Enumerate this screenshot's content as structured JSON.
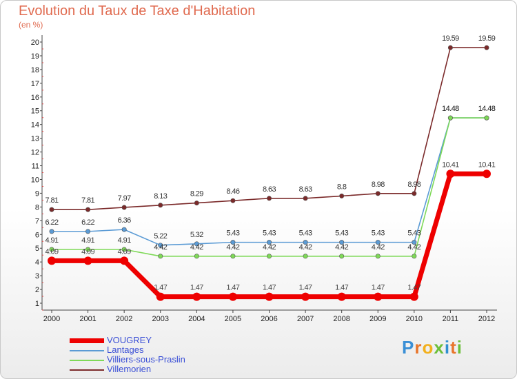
{
  "chart_data": {
    "type": "line",
    "title": "Evolution du Taux de Taxe d'Habitation",
    "subtitle": "(en %)",
    "x": [
      "2000",
      "2001",
      "2002",
      "2003",
      "2004",
      "2005",
      "2006",
      "2007",
      "2008",
      "2009",
      "2010",
      "2011",
      "2012"
    ],
    "ylim": [
      1,
      20
    ],
    "yticks": [
      1,
      2,
      3,
      4,
      5,
      6,
      7,
      8,
      9,
      10,
      11,
      12,
      13,
      14,
      15,
      16,
      17,
      18,
      19,
      20
    ],
    "grid": false,
    "legend_position": "bottom-left",
    "series": [
      {
        "name": "VOUGREY",
        "color": "#ee0000",
        "values": [
          4.09,
          4.09,
          4.09,
          1.47,
          1.47,
          1.47,
          1.47,
          1.47,
          1.47,
          1.47,
          1.47,
          10.41,
          10.41
        ],
        "labels": [
          "4.09",
          "4.09",
          "4.09",
          "1.47",
          "1.47",
          "1.47",
          "1.47",
          "1.47",
          "1.47",
          "1.47",
          "1.47",
          "10.41",
          "10.41"
        ]
      },
      {
        "name": "Lantages",
        "color": "#5b9bd5",
        "values": [
          6.22,
          6.22,
          6.36,
          5.22,
          5.32,
          5.43,
          5.43,
          5.43,
          5.43,
          5.43,
          5.43,
          14.48,
          14.48
        ],
        "labels": [
          "6.22",
          "6.22",
          "6.36",
          "5.22",
          "5.32",
          "5.43",
          "5.43",
          "5.43",
          "5.43",
          "5.43",
          "5.43",
          "14.48",
          "14.48"
        ]
      },
      {
        "name": "Villiers-sous-Praslin",
        "color": "#7ed957",
        "values": [
          4.91,
          4.91,
          4.91,
          4.42,
          4.42,
          4.42,
          4.42,
          4.42,
          4.42,
          4.42,
          4.42,
          14.48,
          14.48
        ],
        "labels": [
          "4.91",
          "4.91",
          "4.91",
          "4.42",
          "4.42",
          "4.42",
          "4.42",
          "4.42",
          "4.42",
          "4.42",
          "4.42",
          "14.48",
          "14.48"
        ]
      },
      {
        "name": "Villemorien",
        "color": "#7b2a2a",
        "values": [
          7.81,
          7.81,
          7.97,
          8.13,
          8.29,
          8.46,
          8.63,
          8.63,
          8.8,
          8.98,
          8.98,
          19.59,
          19.59
        ],
        "labels": [
          "7.81",
          "7.81",
          "7.97",
          "8.13",
          "8.29",
          "8.46",
          "8.63",
          "8.63",
          "8.8",
          "8.98",
          "8.98",
          "19.59",
          "19.59"
        ]
      }
    ]
  },
  "brand": {
    "text": "Proxiti",
    "letter_colors": [
      "#3a8fd6",
      "#e8762c",
      "#f2b01e",
      "#6cbf3a",
      "#2f8fd0",
      "#e8762c",
      "#6cbf3a"
    ]
  }
}
